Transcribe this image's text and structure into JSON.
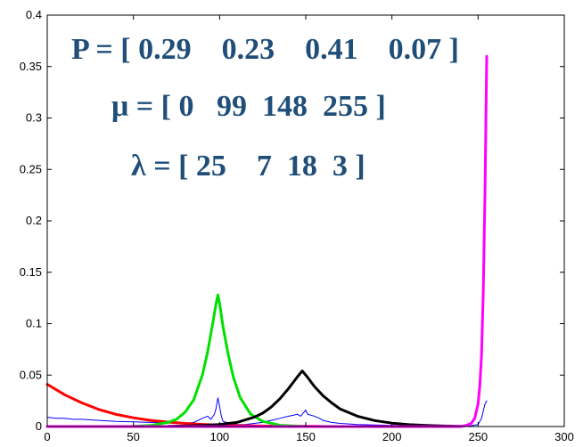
{
  "chart_data": {
    "type": "line",
    "title": "",
    "xlabel": "",
    "ylabel": "",
    "xlim": [
      0,
      300
    ],
    "ylim": [
      0,
      0.4
    ],
    "xticks": [
      0,
      50,
      100,
      150,
      200,
      250,
      300
    ],
    "yticks": [
      0,
      0.05,
      0.1,
      0.15,
      0.2,
      0.25,
      0.3,
      0.35,
      0.4
    ],
    "xtick_labels": [
      "0",
      "50",
      "100",
      "150",
      "200",
      "250",
      "300"
    ],
    "ytick_labels": [
      "0",
      "0.05",
      "0.1",
      "0.15",
      "0.2",
      "0.25",
      "0.3",
      "0.35",
      "0.4"
    ],
    "grid": false,
    "annotations": [
      "P = [ 0.29    0.23    0.41    0.07 ]",
      "μ = [ 0   99  148  255 ]",
      "λ = [ 25    7  18  3 ]"
    ],
    "series": [
      {
        "color": "#ff0000",
        "style": "thick",
        "x": [
          0,
          10,
          20,
          30,
          40,
          50,
          60,
          70,
          80,
          90,
          100,
          110,
          120,
          130,
          140,
          150,
          160
        ],
        "y": [
          0.041,
          0.031,
          0.023,
          0.0165,
          0.0118,
          0.0085,
          0.006,
          0.0043,
          0.003,
          0.0021,
          0.0014,
          0.0009,
          0.0006,
          0.0004,
          0.0003,
          0.0002,
          0.0001
        ]
      },
      {
        "color": "#00e000",
        "style": "thick",
        "x": [
          50,
          60,
          70,
          75,
          80,
          85,
          90,
          93,
          96,
          98,
          99,
          100,
          102,
          105,
          108,
          112,
          118,
          125,
          135,
          150
        ],
        "y": [
          0.0002,
          0.001,
          0.004,
          0.007,
          0.014,
          0.026,
          0.05,
          0.072,
          0.1,
          0.12,
          0.128,
          0.12,
          0.097,
          0.07,
          0.048,
          0.028,
          0.012,
          0.005,
          0.0012,
          0.0001
        ]
      },
      {
        "color": "#000000",
        "style": "thick",
        "x": [
          70,
          80,
          90,
          100,
          110,
          120,
          125,
          130,
          135,
          140,
          145,
          148,
          151,
          155,
          160,
          165,
          170,
          180,
          190,
          200,
          210,
          220,
          230,
          240
        ],
        "y": [
          0.0002,
          0.0005,
          0.001,
          0.002,
          0.004,
          0.009,
          0.013,
          0.019,
          0.027,
          0.037,
          0.048,
          0.054,
          0.048,
          0.039,
          0.03,
          0.023,
          0.017,
          0.01,
          0.0058,
          0.0033,
          0.0018,
          0.001,
          0.0005,
          0.0002
        ]
      },
      {
        "color": "#ff00ff",
        "style": "thick",
        "x": [
          0,
          220,
          240,
          243,
          246,
          248,
          250,
          251,
          252,
          253,
          254,
          255
        ],
        "y": [
          0,
          0,
          0,
          0.001,
          0.003,
          0.008,
          0.022,
          0.04,
          0.07,
          0.13,
          0.23,
          0.36
        ]
      },
      {
        "color": "#0000ff",
        "style": "thin",
        "x": [
          0,
          5,
          10,
          15,
          20,
          25,
          30,
          40,
          50,
          60,
          70,
          80,
          85,
          90,
          93,
          95,
          97,
          98,
          99,
          100,
          101,
          102,
          104,
          107,
          110,
          115,
          120,
          125,
          130,
          135,
          140,
          143,
          145,
          147,
          149,
          150,
          151,
          153,
          155,
          158,
          160,
          165,
          170,
          180,
          190,
          200,
          210,
          220,
          230,
          240,
          245,
          250,
          252,
          253,
          254,
          255
        ],
        "y": [
          0.009,
          0.008,
          0.008,
          0.007,
          0.007,
          0.0065,
          0.006,
          0.005,
          0.0045,
          0.004,
          0.0035,
          0.003,
          0.004,
          0.008,
          0.01,
          0.007,
          0.012,
          0.018,
          0.028,
          0.02,
          0.01,
          0.005,
          0.004,
          0.003,
          0.002,
          0.002,
          0.003,
          0.004,
          0.006,
          0.008,
          0.01,
          0.011,
          0.012,
          0.01,
          0.014,
          0.016,
          0.012,
          0.011,
          0.01,
          0.008,
          0.006,
          0.004,
          0.003,
          0.002,
          0.0015,
          0.001,
          0.0008,
          0.0006,
          0.0005,
          0.0004,
          0.0004,
          0.002,
          0.008,
          0.015,
          0.022,
          0.025
        ]
      }
    ]
  }
}
